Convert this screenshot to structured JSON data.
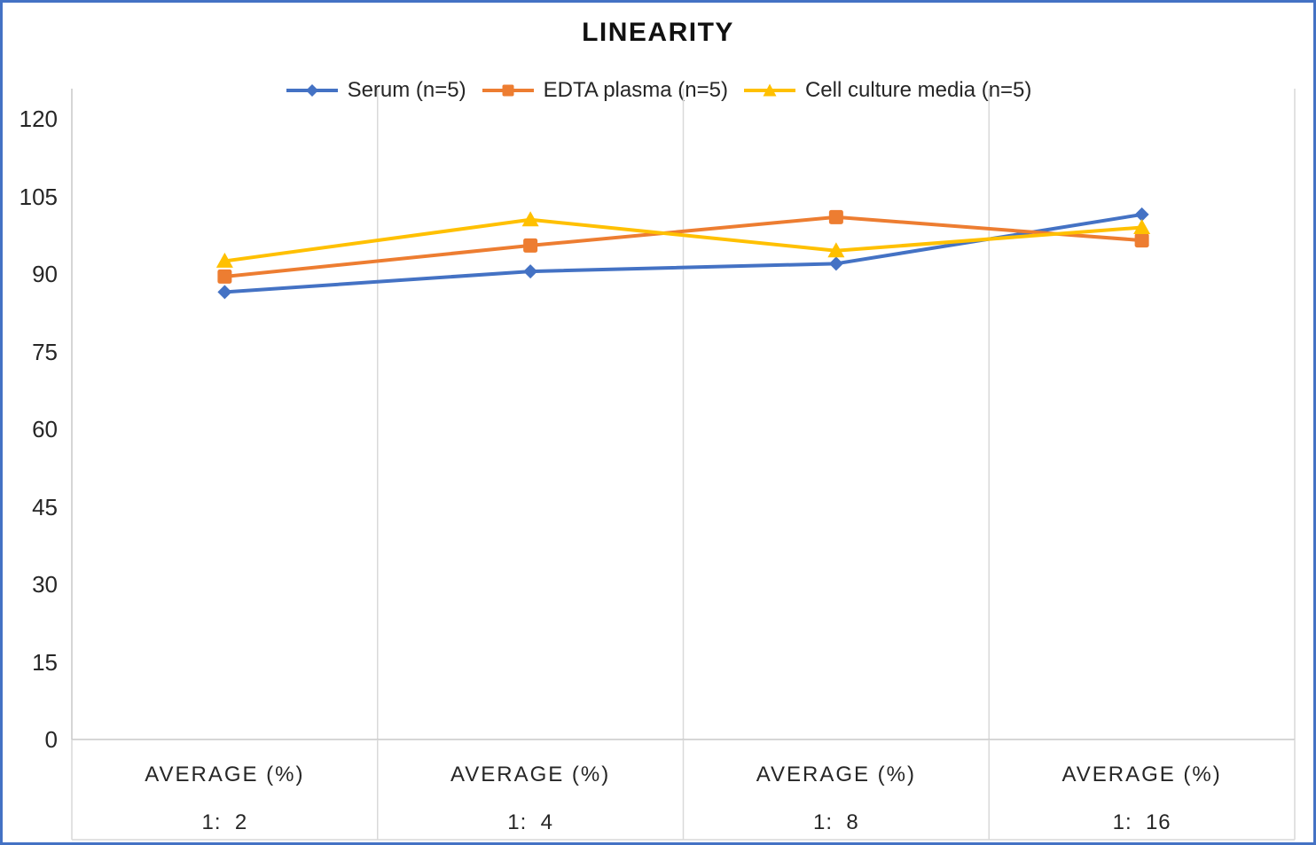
{
  "chart_data": {
    "type": "line",
    "title": "LINEARITY",
    "categories": [
      {
        "group": "AVERAGE (%)",
        "dilution": "1:  2"
      },
      {
        "group": "AVERAGE (%)",
        "dilution": "1:  4"
      },
      {
        "group": "AVERAGE (%)",
        "dilution": "1:  8"
      },
      {
        "group": "AVERAGE (%)",
        "dilution": "1:  16"
      }
    ],
    "series": [
      {
        "name": "Serum (n=5)",
        "marker": "diamond",
        "color": "#4472C4",
        "values": [
          86.5,
          90.5,
          92,
          101.5
        ]
      },
      {
        "name": "EDTA plasma (n=5)",
        "marker": "square",
        "color": "#ED7D31",
        "values": [
          89.5,
          95.5,
          101,
          96.5
        ]
      },
      {
        "name": "Cell culture media (n=5)",
        "marker": "triangle",
        "color": "#FFC000",
        "values": [
          92.5,
          100.5,
          94.5,
          99
        ]
      }
    ],
    "yticks": [
      0,
      15,
      30,
      45,
      60,
      75,
      90,
      105,
      120
    ],
    "ylim": [
      0,
      126
    ],
    "xlabel": "",
    "ylabel": "",
    "grid": "vertical-category-separators",
    "legend_position": "top",
    "colors": {
      "frame_border": "#4472C4",
      "gridline": "#D9D9D9",
      "axis_line": "#C8C8C8",
      "text": "#262626",
      "title_text": "#111111",
      "background": "#FFFFFF"
    }
  }
}
